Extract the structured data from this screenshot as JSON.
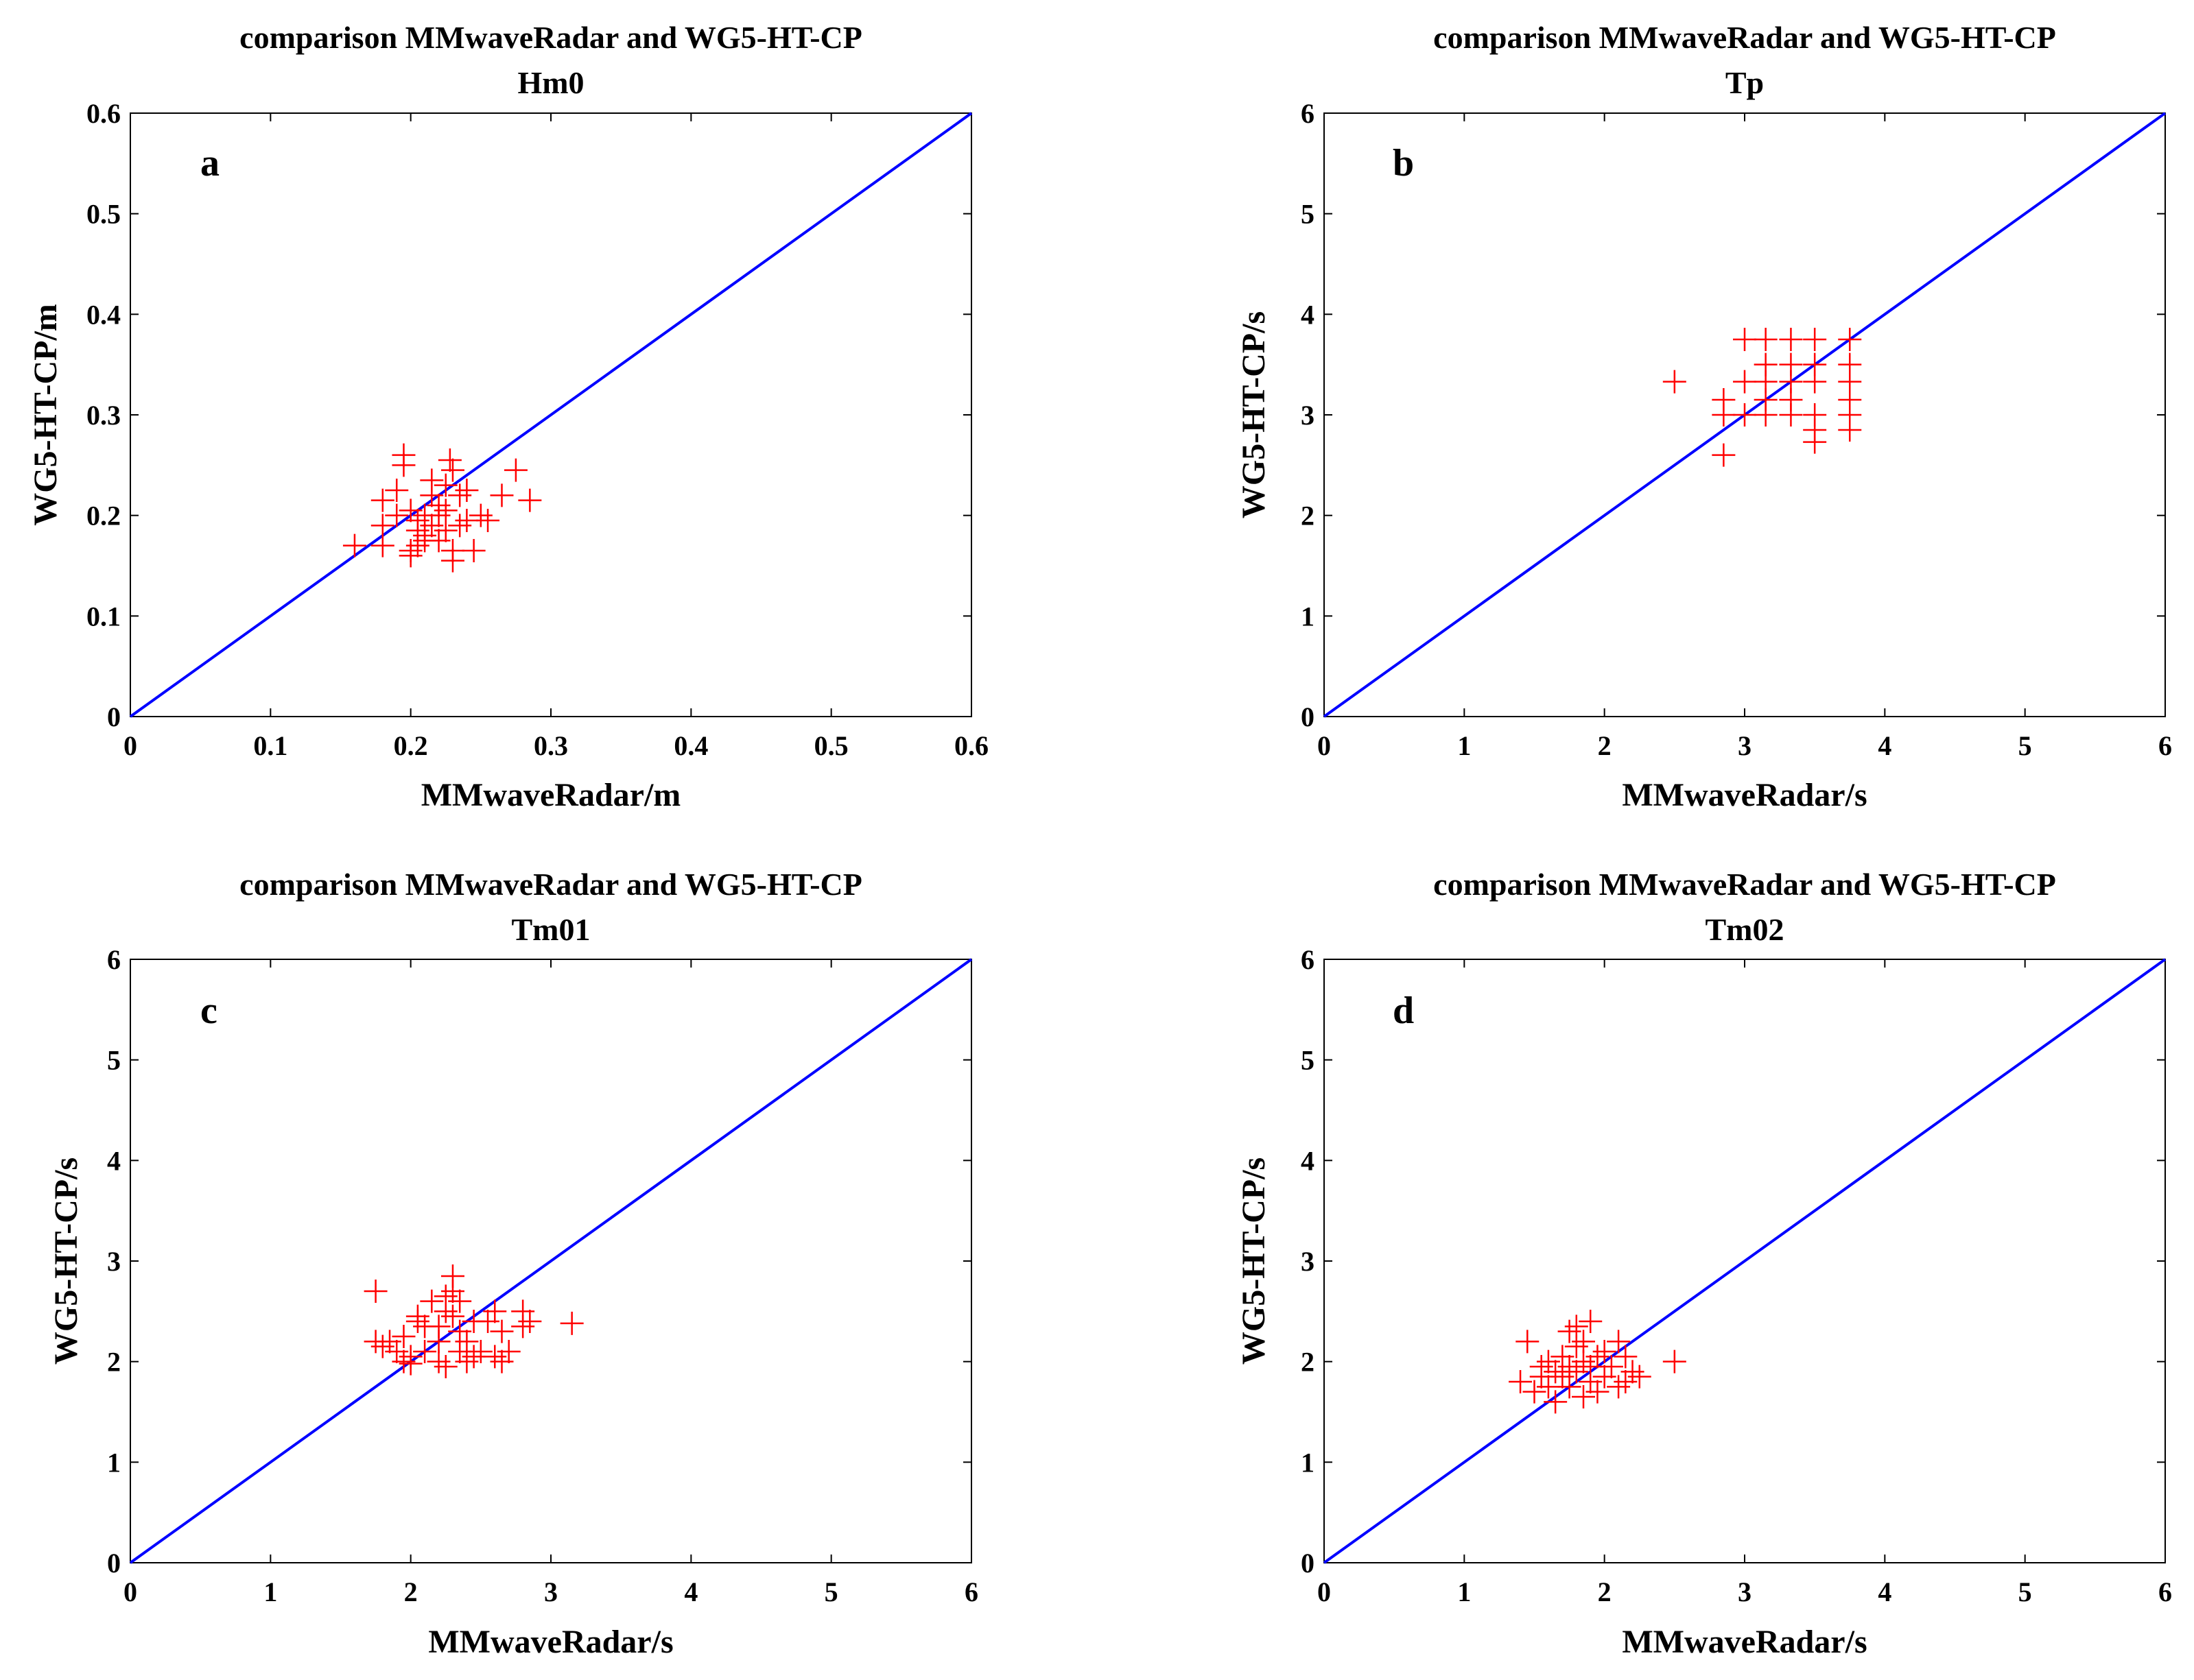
{
  "figure": {
    "colors": {
      "marker": "#ff0000",
      "line": "#0000ff",
      "axis": "#000000",
      "background": "#ffffff"
    },
    "marker_icon": "plus-marker-icon"
  },
  "chart_data": [
    {
      "panel": "a",
      "type": "scatter",
      "title": "comparison MMwaveRadar and WG5-HT-CP",
      "subtitle": "Hm0",
      "xlabel": "MMwaveRadar/m",
      "ylabel": "WG5-HT-CP/m",
      "xlim": [
        0,
        0.6
      ],
      "ylim": [
        0,
        0.6
      ],
      "xticks": [
        0,
        0.1,
        0.2,
        0.3,
        0.4,
        0.5,
        0.6
      ],
      "yticks": [
        0,
        0.1,
        0.2,
        0.3,
        0.4,
        0.5,
        0.6
      ],
      "tick_labels": [
        "0",
        "0.1",
        "0.2",
        "0.3",
        "0.4",
        "0.5",
        "0.6"
      ],
      "reference_line": {
        "from": [
          0,
          0
        ],
        "to": [
          0.6,
          0.6
        ]
      },
      "points": [
        [
          0.16,
          0.17
        ],
        [
          0.18,
          0.17
        ],
        [
          0.18,
          0.19
        ],
        [
          0.18,
          0.215
        ],
        [
          0.19,
          0.2
        ],
        [
          0.19,
          0.225
        ],
        [
          0.195,
          0.26
        ],
        [
          0.195,
          0.25
        ],
        [
          0.2,
          0.16
        ],
        [
          0.2,
          0.165
        ],
        [
          0.205,
          0.17
        ],
        [
          0.205,
          0.185
        ],
        [
          0.205,
          0.195
        ],
        [
          0.21,
          0.2
        ],
        [
          0.21,
          0.18
        ],
        [
          0.215,
          0.22
        ],
        [
          0.215,
          0.235
        ],
        [
          0.215,
          0.19
        ],
        [
          0.22,
          0.175
        ],
        [
          0.22,
          0.2
        ],
        [
          0.22,
          0.21
        ],
        [
          0.225,
          0.185
        ],
        [
          0.225,
          0.205
        ],
        [
          0.228,
          0.255
        ],
        [
          0.23,
          0.245
        ],
        [
          0.23,
          0.165
        ],
        [
          0.23,
          0.155
        ],
        [
          0.235,
          0.19
        ],
        [
          0.235,
          0.22
        ],
        [
          0.24,
          0.195
        ],
        [
          0.24,
          0.225
        ],
        [
          0.245,
          0.165
        ],
        [
          0.25,
          0.2
        ],
        [
          0.255,
          0.195
        ],
        [
          0.265,
          0.22
        ],
        [
          0.275,
          0.245
        ],
        [
          0.285,
          0.215
        ],
        [
          0.2,
          0.205
        ],
        [
          0.21,
          0.175
        ],
        [
          0.225,
          0.23
        ]
      ]
    },
    {
      "panel": "b",
      "type": "scatter",
      "title": "comparison MMwaveRadar and WG5-HT-CP",
      "subtitle": "Tp",
      "xlabel": "MMwaveRadar/s",
      "ylabel": "WG5-HT-CP/s",
      "xlim": [
        0,
        6
      ],
      "ylim": [
        0,
        6
      ],
      "xticks": [
        0,
        1,
        2,
        3,
        4,
        5,
        6
      ],
      "yticks": [
        0,
        1,
        2,
        3,
        4,
        5,
        6
      ],
      "tick_labels": [
        "0",
        "1",
        "2",
        "3",
        "4",
        "5",
        "6"
      ],
      "reference_line": {
        "from": [
          0,
          0
        ],
        "to": [
          6,
          6
        ]
      },
      "points": [
        [
          2.5,
          3.33
        ],
        [
          2.85,
          2.6
        ],
        [
          2.85,
          3.0
        ],
        [
          2.85,
          3.15
        ],
        [
          3.0,
          3.33
        ],
        [
          3.0,
          3.75
        ],
        [
          3.0,
          3.0
        ],
        [
          3.15,
          3.0
        ],
        [
          3.15,
          3.15
        ],
        [
          3.15,
          3.33
        ],
        [
          3.15,
          3.5
        ],
        [
          3.15,
          3.75
        ],
        [
          3.33,
          3.0
        ],
        [
          3.33,
          3.15
        ],
        [
          3.33,
          3.33
        ],
        [
          3.33,
          3.5
        ],
        [
          3.33,
          3.75
        ],
        [
          3.5,
          2.73
        ],
        [
          3.5,
          2.85
        ],
        [
          3.5,
          3.0
        ],
        [
          3.5,
          3.33
        ],
        [
          3.5,
          3.5
        ],
        [
          3.5,
          3.75
        ],
        [
          3.75,
          2.85
        ],
        [
          3.75,
          3.0
        ],
        [
          3.75,
          3.15
        ],
        [
          3.75,
          3.33
        ],
        [
          3.75,
          3.5
        ],
        [
          3.75,
          3.75
        ]
      ]
    },
    {
      "panel": "c",
      "type": "scatter",
      "title": "comparison MMwaveRadar and WG5-HT-CP",
      "subtitle": "Tm01",
      "xlabel": "MMwaveRadar/s",
      "ylabel": "WG5-HT-CP/s",
      "xlim": [
        0,
        6
      ],
      "ylim": [
        0,
        6
      ],
      "xticks": [
        0,
        1,
        2,
        3,
        4,
        5,
        6
      ],
      "yticks": [
        0,
        1,
        2,
        3,
        4,
        5,
        6
      ],
      "tick_labels": [
        "0",
        "1",
        "2",
        "3",
        "4",
        "5",
        "6"
      ],
      "reference_line": {
        "from": [
          0,
          0
        ],
        "to": [
          6,
          6
        ]
      },
      "points": [
        [
          1.75,
          2.7
        ],
        [
          1.75,
          2.2
        ],
        [
          1.8,
          2.15
        ],
        [
          1.85,
          2.2
        ],
        [
          1.9,
          2.1
        ],
        [
          1.95,
          2.0
        ],
        [
          1.95,
          2.25
        ],
        [
          2.0,
          1.98
        ],
        [
          2.0,
          2.05
        ],
        [
          2.05,
          2.4
        ],
        [
          2.05,
          2.45
        ],
        [
          2.1,
          2.1
        ],
        [
          2.1,
          2.35
        ],
        [
          2.15,
          2.6
        ],
        [
          2.2,
          2.2
        ],
        [
          2.2,
          2.35
        ],
        [
          2.2,
          2.0
        ],
        [
          2.25,
          2.5
        ],
        [
          2.25,
          2.65
        ],
        [
          2.25,
          1.95
        ],
        [
          2.3,
          2.85
        ],
        [
          2.3,
          2.7
        ],
        [
          2.3,
          2.45
        ],
        [
          2.35,
          2.3
        ],
        [
          2.35,
          2.1
        ],
        [
          2.35,
          2.6
        ],
        [
          2.4,
          2.2
        ],
        [
          2.4,
          2.0
        ],
        [
          2.45,
          2.05
        ],
        [
          2.45,
          2.4
        ],
        [
          2.5,
          2.1
        ],
        [
          2.55,
          2.4
        ],
        [
          2.6,
          2.5
        ],
        [
          2.6,
          2.05
        ],
        [
          2.65,
          2.3
        ],
        [
          2.65,
          2.0
        ],
        [
          2.7,
          2.1
        ],
        [
          2.8,
          2.5
        ],
        [
          2.8,
          2.35
        ],
        [
          2.85,
          2.4
        ],
        [
          3.15,
          2.38
        ]
      ]
    },
    {
      "panel": "d",
      "type": "scatter",
      "title": "comparison MMwaveRadar and WG5-HT-CP",
      "subtitle": "Tm02",
      "xlabel": "MMwaveRadar/s",
      "ylabel": "WG5-HT-CP/s",
      "xlim": [
        0,
        6
      ],
      "ylim": [
        0,
        6
      ],
      "xticks": [
        0,
        1,
        2,
        3,
        4,
        5,
        6
      ],
      "yticks": [
        0,
        1,
        2,
        3,
        4,
        5,
        6
      ],
      "tick_labels": [
        "0",
        "1",
        "2",
        "3",
        "4",
        "5",
        "6"
      ],
      "reference_line": {
        "from": [
          0,
          0
        ],
        "to": [
          6,
          6
        ]
      },
      "points": [
        [
          1.4,
          1.8
        ],
        [
          1.45,
          2.2
        ],
        [
          1.5,
          1.7
        ],
        [
          1.55,
          1.85
        ],
        [
          1.55,
          1.95
        ],
        [
          1.6,
          2.0
        ],
        [
          1.6,
          1.75
        ],
        [
          1.65,
          1.6
        ],
        [
          1.65,
          1.9
        ],
        [
          1.7,
          2.05
        ],
        [
          1.7,
          1.85
        ],
        [
          1.75,
          2.3
        ],
        [
          1.75,
          1.95
        ],
        [
          1.75,
          1.75
        ],
        [
          1.8,
          2.15
        ],
        [
          1.8,
          2.35
        ],
        [
          1.8,
          1.9
        ],
        [
          1.85,
          2.0
        ],
        [
          1.85,
          1.65
        ],
        [
          1.85,
          2.2
        ],
        [
          1.9,
          2.4
        ],
        [
          1.9,
          1.95
        ],
        [
          1.9,
          1.8
        ],
        [
          1.95,
          2.05
        ],
        [
          1.95,
          1.7
        ],
        [
          2.0,
          2.1
        ],
        [
          2.0,
          1.85
        ],
        [
          2.05,
          1.95
        ],
        [
          2.1,
          2.2
        ],
        [
          2.1,
          1.75
        ],
        [
          2.15,
          2.05
        ],
        [
          2.15,
          1.8
        ],
        [
          2.2,
          1.9
        ],
        [
          2.25,
          1.85
        ],
        [
          2.5,
          2.0
        ]
      ]
    }
  ]
}
